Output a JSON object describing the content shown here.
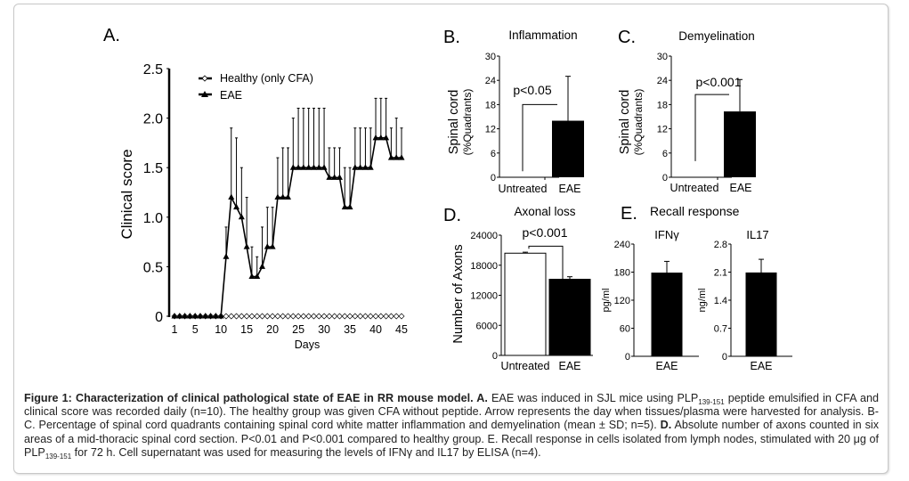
{
  "panel_labels": {
    "a": "A.",
    "b": "B.",
    "c": "C.",
    "d": "D.",
    "e": "E."
  },
  "chart_data": [
    {
      "id": "A",
      "type": "line",
      "title": "",
      "xlabel": "Days",
      "ylabel": "Clinical score",
      "xlim": [
        1,
        45
      ],
      "ylim": [
        0,
        2.5
      ],
      "xticks": [
        1,
        5,
        10,
        15,
        20,
        25,
        30,
        35,
        40,
        45
      ],
      "xtick_labels": [
        "1",
        "5",
        "10",
        "15",
        "20",
        "25",
        "30",
        "35",
        "40",
        "45"
      ],
      "yticks": [
        0,
        0.5,
        1.0,
        1.5,
        2.0,
        2.5
      ],
      "ytick_labels": [
        "0",
        "0.5",
        "1.0",
        "1.5",
        "2.0",
        "2.5"
      ],
      "legend": {
        "placement": "top-left",
        "entries": [
          "Healthy (only CFA)",
          "EAE"
        ]
      },
      "series": [
        {
          "name": "Healthy (only CFA)",
          "marker": "open-diamond",
          "x": [
            1,
            2,
            3,
            4,
            5,
            6,
            7,
            8,
            9,
            10,
            11,
            12,
            13,
            14,
            15,
            16,
            17,
            18,
            19,
            20,
            21,
            22,
            23,
            24,
            25,
            26,
            27,
            28,
            29,
            30,
            31,
            32,
            33,
            34,
            35,
            36,
            37,
            38,
            39,
            40,
            41,
            42,
            43,
            44,
            45
          ],
          "values": [
            0,
            0,
            0,
            0,
            0,
            0,
            0,
            0,
            0,
            0,
            0,
            0,
            0,
            0,
            0,
            0,
            0,
            0,
            0,
            0,
            0,
            0,
            0,
            0,
            0,
            0,
            0,
            0,
            0,
            0,
            0,
            0,
            0,
            0,
            0,
            0,
            0,
            0,
            0,
            0,
            0,
            0,
            0,
            0,
            0
          ]
        },
        {
          "name": "EAE",
          "marker": "filled-triangle",
          "x": [
            1,
            2,
            3,
            4,
            5,
            6,
            7,
            8,
            9,
            10,
            11,
            12,
            13,
            14,
            15,
            16,
            17,
            18,
            19,
            20,
            21,
            22,
            23,
            24,
            25,
            26,
            27,
            28,
            29,
            30,
            31,
            32,
            33,
            34,
            35,
            36,
            37,
            38,
            39,
            40,
            41,
            42,
            43,
            44,
            45
          ],
          "values": [
            0,
            0,
            0,
            0,
            0,
            0,
            0,
            0,
            0,
            0,
            0.6,
            1.2,
            1.1,
            1.0,
            0.7,
            0.4,
            0.4,
            0.5,
            0.7,
            0.7,
            1.2,
            1.2,
            1.2,
            1.5,
            1.5,
            1.5,
            1.5,
            1.5,
            1.5,
            1.5,
            1.4,
            1.4,
            1.4,
            1.1,
            1.1,
            1.5,
            1.5,
            1.5,
            1.5,
            1.8,
            1.8,
            1.8,
            1.6,
            1.6,
            1.6
          ],
          "error_upper": [
            0,
            0,
            0,
            0,
            0,
            0,
            0,
            0,
            0,
            0,
            0.9,
            1.9,
            1.8,
            1.5,
            1.2,
            0.7,
            0.6,
            0.9,
            1.1,
            1.1,
            1.6,
            1.7,
            1.7,
            2.0,
            2.1,
            2.1,
            2.1,
            2.1,
            2.1,
            2.1,
            1.7,
            1.7,
            1.7,
            1.5,
            1.5,
            1.9,
            1.9,
            1.9,
            1.9,
            2.2,
            2.2,
            2.2,
            1.9,
            2.0,
            1.9
          ]
        }
      ]
    },
    {
      "id": "B",
      "type": "bar",
      "title": "Inflammation",
      "ylabel": "Spinal cord",
      "ylabel2": "(%Quadrants)",
      "categories": [
        "Untreated",
        "EAE"
      ],
      "values": [
        0,
        14
      ],
      "error_upper": [
        0,
        25
      ],
      "bar_fill": [
        "#ffffff",
        "#000000"
      ],
      "ylim": [
        0,
        30
      ],
      "yticks": [
        0,
        6,
        12,
        18,
        24,
        30
      ],
      "ytick_labels": [
        "0",
        "6",
        "12",
        "18",
        "24",
        "30"
      ],
      "annotation": "p<0.05",
      "bracket_level": 18,
      "bracket_left_bottom": 1.5
    },
    {
      "id": "C",
      "type": "bar",
      "title": "Demyelination",
      "ylabel": "Spinal cord",
      "ylabel2": "(%Quadrants)",
      "categories": [
        "Untreated",
        "EAE"
      ],
      "values": [
        0,
        16.3
      ],
      "error_upper": [
        0,
        24.2
      ],
      "bar_fill": [
        "#ffffff",
        "#000000"
      ],
      "ylim": [
        0,
        30
      ],
      "yticks": [
        0,
        6,
        12,
        18,
        24,
        30
      ],
      "ytick_labels": [
        "0",
        "6",
        "12",
        "18",
        "24",
        "30"
      ],
      "annotation": "p<0.001",
      "bracket_level": 20.5,
      "bracket_left_bottom": 4
    },
    {
      "id": "D",
      "type": "bar",
      "title": "Axonal loss",
      "ylabel": "Number of Axons",
      "categories": [
        "Untreated",
        "EAE"
      ],
      "values": [
        20400,
        15200
      ],
      "error_upper": [
        20600,
        15700
      ],
      "bar_fill": [
        "#ffffff",
        "#000000"
      ],
      "ylim": [
        0,
        24000
      ],
      "yticks": [
        0,
        6000,
        12000,
        18000,
        24000
      ],
      "ytick_labels": [
        "0",
        "6000",
        "12000",
        "18000",
        "24000"
      ],
      "annotation": "p<0.001",
      "bracket_level": 21300
    },
    {
      "id": "E1",
      "type": "bar",
      "group_title": "Recall response",
      "title": "IFNγ",
      "ylabel": "pg/ml",
      "categories": [
        "EAE"
      ],
      "values": [
        178
      ],
      "error_upper": [
        203
      ],
      "bar_fill": [
        "#000000"
      ],
      "ylim": [
        0,
        240
      ],
      "yticks": [
        0,
        60,
        120,
        180,
        240
      ],
      "ytick_labels": [
        "0",
        "60",
        "120",
        "180",
        "240"
      ]
    },
    {
      "id": "E2",
      "type": "bar",
      "title": "IL17",
      "ylabel": "ng/ml",
      "categories": [
        "EAE"
      ],
      "values": [
        2.08
      ],
      "error_upper": [
        2.42
      ],
      "bar_fill": [
        "#000000"
      ],
      "ylim": [
        0,
        2.8
      ],
      "yticks": [
        0,
        0.7,
        1.4,
        2.1,
        2.8
      ],
      "ytick_labels": [
        "0",
        "0.7",
        "1.4",
        "2.1",
        "2.8"
      ]
    }
  ],
  "caption": {
    "bold_lead": "Figure 1: Characterization of clinical pathological state of EAE in RR mouse model. A.",
    "t1": " EAE was induced in SJL mice using PLP",
    "sub1": "139-151",
    "t2": " peptide emulsified in CFA and clinical score was recorded daily (n=10). The healthy group was given CFA without peptide. Arrow represents the day when tissues/plasma were harvested for analysis. B-C. Percentage of spinal cord quadrants containing spinal cord white matter inflammation and demyelination (mean ± SD; n=5). ",
    "bold_d": "D.",
    "t3": " Absolute number of axons counted in six areas of a mid-thoracic spinal cord section. P<0.01 and P<0.001 compared to healthy group. E. Recall response in cells isolated from lymph nodes, stimulated with 20 μg of PLP",
    "sub2": "139-151",
    "t4": " for 72 h. Cell supernatant was used for measuring the levels of IFNγ and IL17 by ELISA (n=4)."
  }
}
